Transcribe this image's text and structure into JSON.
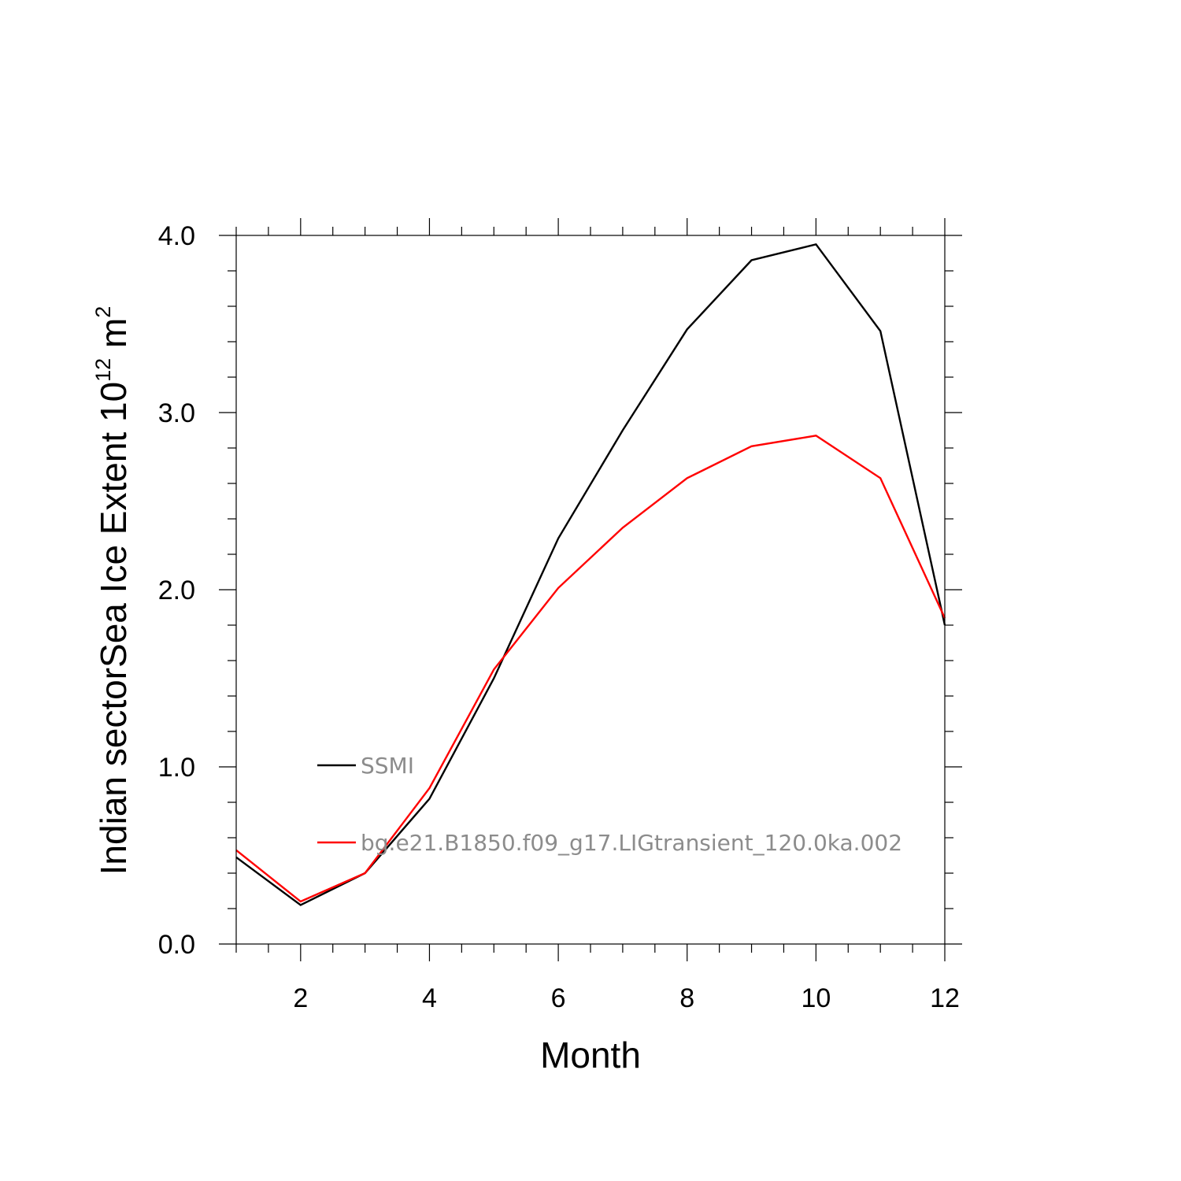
{
  "chart_data": {
    "type": "line",
    "xlabel": "Month",
    "ylabel": {
      "prefix": "Indian sectorSea Ice Extent 10",
      "exponent": "12",
      "unit": " m",
      "unit_exponent": "2"
    },
    "xlim": [
      1,
      12
    ],
    "ylim": [
      0,
      4
    ],
    "x_ticks": [
      2,
      4,
      6,
      8,
      10,
      12
    ],
    "x_tick_labels": [
      "2",
      "4",
      "6",
      "8",
      "10",
      "12"
    ],
    "y_ticks": [
      0,
      1,
      2,
      3,
      4
    ],
    "y_tick_labels": [
      "0.0",
      "1.0",
      "2.0",
      "3.0",
      "4.0"
    ],
    "x_minor_step": 0.5,
    "y_minor_step": 0.2,
    "grid": false,
    "legend_position": "lower-left inside",
    "x": [
      1,
      2,
      3,
      4,
      5,
      6,
      7,
      8,
      9,
      10,
      11,
      12
    ],
    "series": [
      {
        "name": "SSMI",
        "color": "#000000",
        "values": [
          0.49,
          0.22,
          0.4,
          0.82,
          1.5,
          2.29,
          2.9,
          3.47,
          3.86,
          3.95,
          3.46,
          1.8
        ]
      },
      {
        "name": "bg.e21.B1850.f09_g17.LIGtransient_120.0ka.002",
        "color": "#ff0000",
        "values": [
          0.53,
          0.24,
          0.4,
          0.88,
          1.55,
          2.01,
          2.35,
          2.63,
          2.81,
          2.87,
          2.63,
          1.84
        ]
      }
    ]
  }
}
